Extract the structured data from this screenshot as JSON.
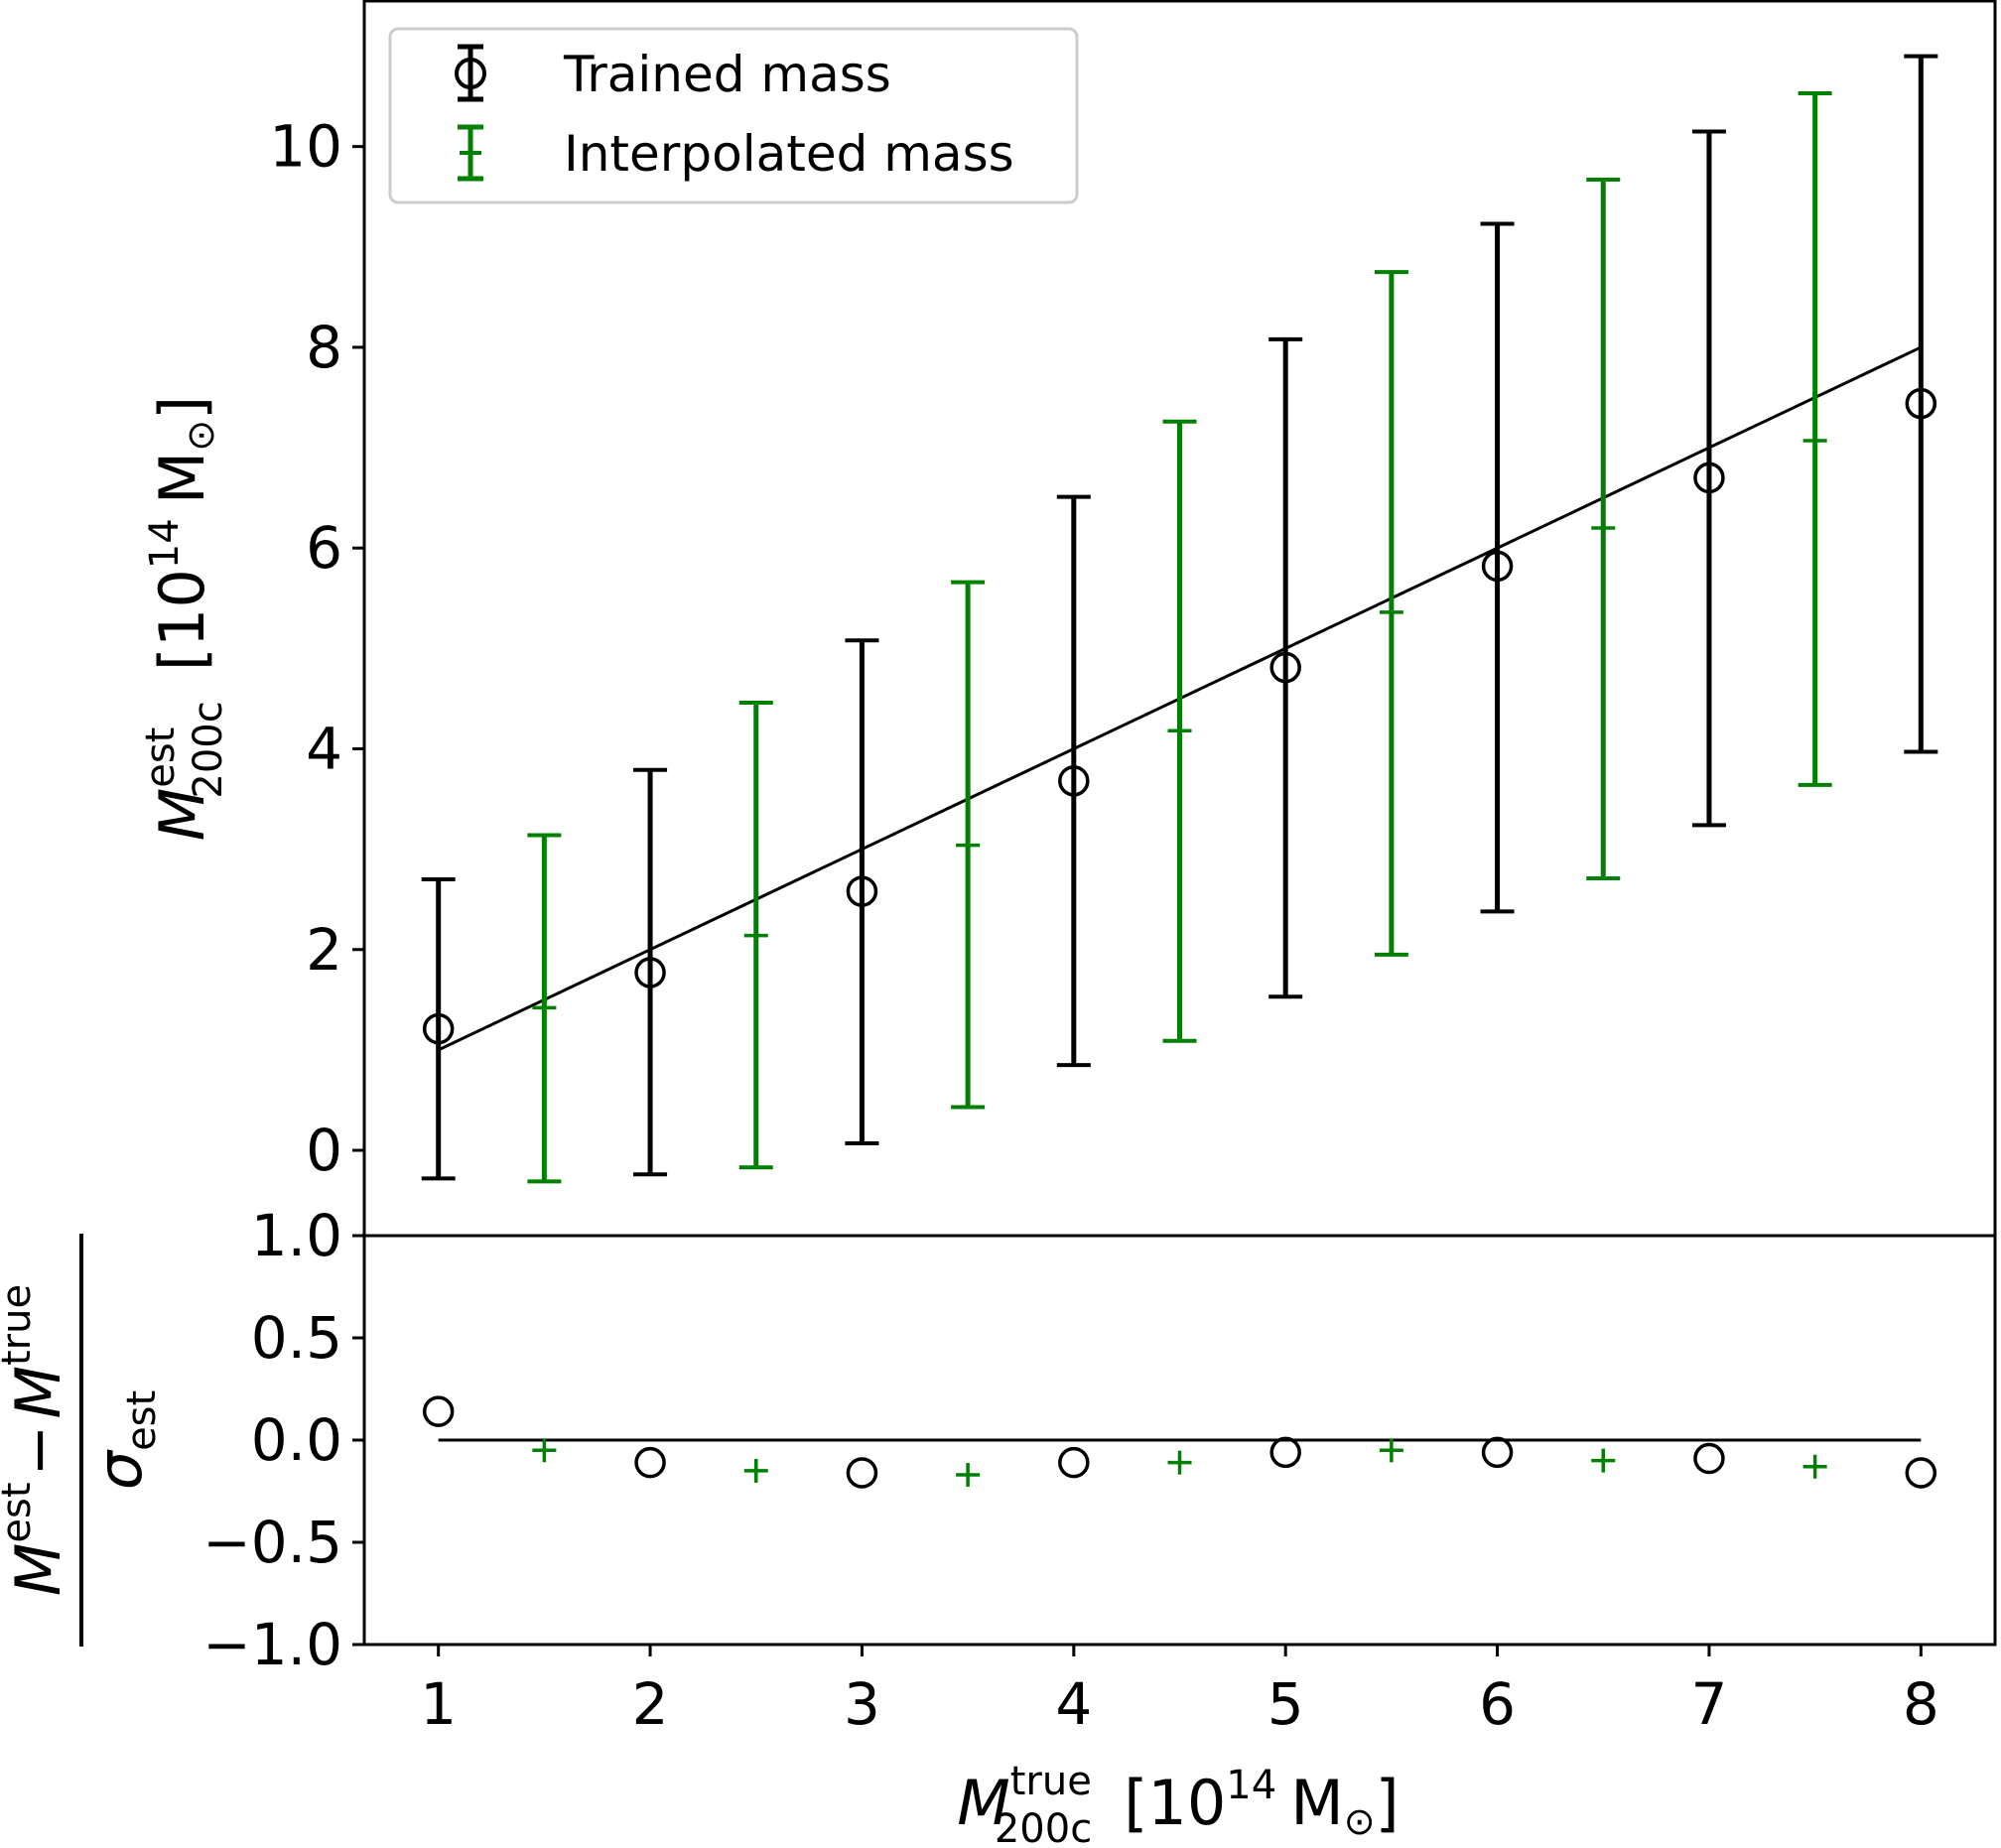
{
  "chart_data": [
    {
      "panel": "main",
      "type": "scatter",
      "xlabel": {
        "symbol": "M",
        "superscript": "true",
        "subscript": "200c",
        "unit_base": "10",
        "unit_exp": "14",
        "unit_sym": "M",
        "unit_sun": "⊙",
        "open": "[",
        "close": "]"
      },
      "ylabel": {
        "symbol": "M",
        "superscript": "est",
        "subscript": "200c",
        "unit_base": "10",
        "unit_exp": "14",
        "unit_sym": "M",
        "unit_sun": "⊙",
        "open": "[",
        "close": "]"
      },
      "xlim": [
        0.65,
        8.35
      ],
      "ylim": [
        -0.85,
        11.45
      ],
      "xticks": [
        1,
        2,
        3,
        4,
        5,
        6,
        7,
        8
      ],
      "yticks": [
        0,
        2,
        4,
        6,
        8,
        10
      ],
      "grid": false,
      "legend": {
        "placement": "top-left",
        "entries": [
          {
            "label": "Trained mass",
            "color": "#000000",
            "marker": "circle"
          },
          {
            "label": "Interpolated mass",
            "color": "#008000",
            "marker": "plus"
          }
        ]
      },
      "reference_line": {
        "x": [
          1,
          8
        ],
        "y": [
          1,
          8
        ],
        "color": "#000000"
      },
      "series": [
        {
          "name": "Trained mass",
          "color": "#000000",
          "marker": "circle",
          "x": [
            1,
            2,
            3,
            4,
            5,
            6,
            7,
            8
          ],
          "y": [
            1.21,
            1.77,
            2.58,
            3.68,
            4.81,
            5.82,
            6.7,
            7.44
          ],
          "err_low": [
            -0.28,
            -0.24,
            0.07,
            0.85,
            1.53,
            2.38,
            3.24,
            3.97
          ],
          "err_high": [
            2.7,
            3.79,
            5.08,
            6.51,
            8.08,
            9.23,
            10.15,
            10.9
          ]
        },
        {
          "name": "Interpolated mass",
          "color": "#008000",
          "marker": "plus",
          "x": [
            1.5,
            2.5,
            3.5,
            4.5,
            5.5,
            6.5,
            7.5
          ],
          "y": [
            1.42,
            2.14,
            3.04,
            4.18,
            5.36,
            6.2,
            7.07
          ],
          "err_low": [
            -0.31,
            -0.17,
            0.43,
            1.09,
            1.95,
            2.71,
            3.64
          ],
          "err_high": [
            3.14,
            4.46,
            5.66,
            7.26,
            8.75,
            9.67,
            10.53
          ]
        }
      ]
    },
    {
      "panel": "residual",
      "type": "scatter",
      "ylabel": {
        "num_a": "M",
        "num_a_sup": "est",
        "minus": "−",
        "num_b": "M",
        "num_b_sup": "true",
        "den": "σ",
        "den_sub": "est"
      },
      "xlim": [
        0.65,
        8.35
      ],
      "ylim": [
        -1.0,
        1.0
      ],
      "xticks": [
        1,
        2,
        3,
        4,
        5,
        6,
        7,
        8
      ],
      "yticks": [
        -1.0,
        -0.5,
        0.0,
        0.5,
        1.0
      ],
      "yticklabels": [
        "−1.0",
        "−0.5",
        "0.0",
        "0.5",
        "1.0"
      ],
      "grid": false,
      "reference_line": {
        "x": [
          1,
          8
        ],
        "y": [
          0,
          0
        ],
        "color": "#000000"
      },
      "series": [
        {
          "name": "Trained mass",
          "color": "#000000",
          "marker": "circle",
          "x": [
            1,
            2,
            3,
            4,
            5,
            6,
            7,
            8
          ],
          "y": [
            0.14,
            -0.11,
            -0.16,
            -0.11,
            -0.06,
            -0.06,
            -0.09,
            -0.16
          ]
        },
        {
          "name": "Interpolated mass",
          "color": "#008000",
          "marker": "plus",
          "x": [
            1.5,
            2.5,
            3.5,
            4.5,
            5.5,
            6.5,
            7.5
          ],
          "y": [
            -0.05,
            -0.15,
            -0.17,
            -0.11,
            -0.05,
            -0.1,
            -0.13
          ]
        }
      ]
    }
  ]
}
